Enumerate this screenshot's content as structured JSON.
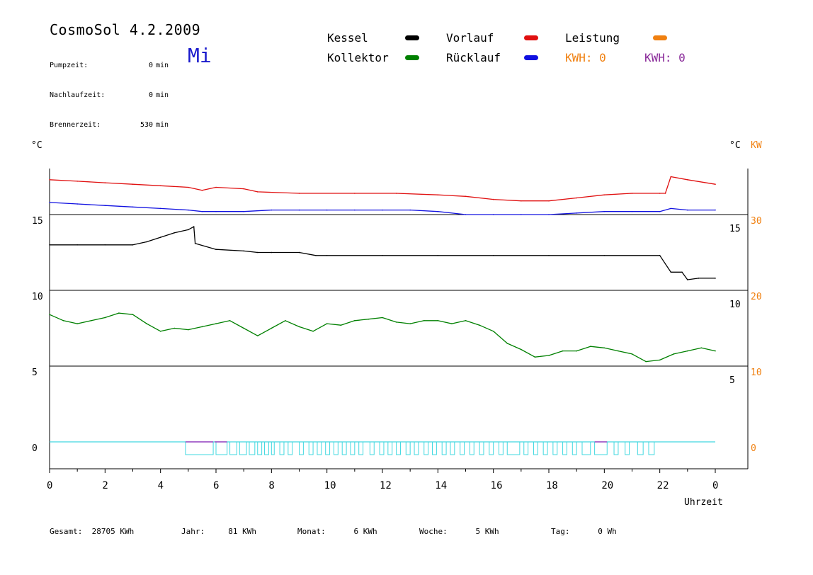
{
  "header": {
    "title": "CosmoSol 4.2.2009",
    "day": "Mi",
    "stats": [
      {
        "label": "Pumpzeit:",
        "value": "0",
        "unit": "min"
      },
      {
        "label": "Nachlaufzeit:",
        "value": "0",
        "unit": "min"
      },
      {
        "label": "Brennerzeit:",
        "value": "530",
        "unit": "min"
      }
    ]
  },
  "legend": {
    "kessel": "Kessel",
    "kollektor": "Kollektor",
    "vorlauf": "Vorlauf",
    "ruecklauf": "Rücklauf",
    "leistung": "Leistung",
    "kwh1": "KWH: 0",
    "kwh2": "KWH: 0"
  },
  "axes": {
    "left_unit": "°C",
    "right_unit": "°C",
    "right_unit2": "KW",
    "xlabel": "Uhrzeit"
  },
  "colors": {
    "kessel": "#000000",
    "kollektor": "#008000",
    "vorlauf": "#e01010",
    "ruecklauf": "#1010e0",
    "leistung": "#f08010",
    "kwh2": "#8a2b9a",
    "pump": "#40d8e0",
    "pump2": "#a040c0"
  },
  "footer": {
    "gesamt": "Gesamt:  28705 KWh",
    "jahr": "Jahr:     81 KWh",
    "monat": "Monat:      6 KWh",
    "woche": "Woche:      5 KWh",
    "tag": "Tag:      0 Wh"
  },
  "chart_data": {
    "type": "line",
    "xlabel": "Uhrzeit",
    "x_ticks": [
      "0",
      "2",
      "4",
      "6",
      "8",
      "10",
      "12",
      "14",
      "16",
      "18",
      "20",
      "22",
      "0"
    ],
    "left_ticks": [
      "0",
      "5",
      "10",
      "15"
    ],
    "right_ticks_c": [
      "5",
      "10",
      "15"
    ],
    "right_ticks_kw": [
      "0",
      "10",
      "20",
      "30"
    ],
    "xlim": [
      0,
      24
    ],
    "series": [
      {
        "name": "Vorlauf",
        "x": [
          0,
          1,
          2,
          3,
          4,
          5,
          5.5,
          6,
          7,
          7.5,
          9,
          11,
          12.5,
          14,
          15,
          16,
          17,
          18,
          19,
          20,
          21,
          22,
          22.2,
          22.4,
          23,
          24
        ],
        "y": [
          17.3,
          17.2,
          17.1,
          17.0,
          16.9,
          16.8,
          16.6,
          16.8,
          16.7,
          16.5,
          16.4,
          16.4,
          16.4,
          16.3,
          16.2,
          16.0,
          15.9,
          15.9,
          16.1,
          16.3,
          16.4,
          16.4,
          16.4,
          17.5,
          17.3,
          17.0
        ]
      },
      {
        "name": "Rücklauf",
        "x": [
          0,
          1,
          2,
          3,
          4,
          5,
          5.5,
          6,
          7,
          8,
          9,
          10,
          11,
          12,
          13,
          14,
          15,
          16,
          17,
          18,
          19,
          20,
          21,
          22,
          22.4,
          23,
          24
        ],
        "y": [
          15.8,
          15.7,
          15.6,
          15.5,
          15.4,
          15.3,
          15.2,
          15.2,
          15.2,
          15.3,
          15.3,
          15.3,
          15.3,
          15.3,
          15.3,
          15.2,
          15.0,
          15.0,
          15.0,
          15.0,
          15.1,
          15.2,
          15.2,
          15.2,
          15.4,
          15.3,
          15.3
        ]
      },
      {
        "name": "Kessel",
        "x": [
          0,
          1,
          2,
          3,
          3.5,
          4,
          4.5,
          5,
          5.2,
          5.25,
          6,
          7,
          7.5,
          8,
          9,
          9.6,
          10,
          12,
          14,
          16,
          18,
          20,
          22,
          22.4,
          22.8,
          23,
          23.4,
          24
        ],
        "y": [
          13.0,
          13.0,
          13.0,
          13.0,
          13.2,
          13.5,
          13.8,
          14.0,
          14.2,
          13.1,
          12.7,
          12.6,
          12.5,
          12.5,
          12.5,
          12.3,
          12.3,
          12.3,
          12.3,
          12.3,
          12.3,
          12.3,
          12.3,
          11.2,
          11.2,
          10.7,
          10.8,
          10.8
        ]
      },
      {
        "name": "Kollektor",
        "x": [
          0,
          0.5,
          1,
          1.5,
          2,
          2.5,
          3,
          3.5,
          4,
          4.5,
          5,
          5.5,
          6,
          6.5,
          7,
          7.5,
          8,
          8.5,
          9,
          9.5,
          10,
          10.5,
          11,
          11.5,
          12,
          12.5,
          13,
          13.5,
          14,
          14.5,
          15,
          15.5,
          16,
          16.5,
          17,
          17.5,
          18,
          18.5,
          19,
          19.5,
          20,
          20.5,
          21,
          21.5,
          22,
          22.5,
          23,
          23.5,
          24
        ],
        "y": [
          8.4,
          8.0,
          7.8,
          8.0,
          8.2,
          8.5,
          8.4,
          7.8,
          7.3,
          7.5,
          7.4,
          7.6,
          7.8,
          8.0,
          7.5,
          7.0,
          7.5,
          8.0,
          7.6,
          7.3,
          7.8,
          7.7,
          8.0,
          8.1,
          8.2,
          7.9,
          7.8,
          8.0,
          8.0,
          7.8,
          8.0,
          7.7,
          7.3,
          6.5,
          6.1,
          5.6,
          5.7,
          6.0,
          6.0,
          6.3,
          6.2,
          6.0,
          5.8,
          5.3,
          5.4,
          5.8,
          6.0,
          6.2,
          6.0
        ]
      }
    ]
  }
}
